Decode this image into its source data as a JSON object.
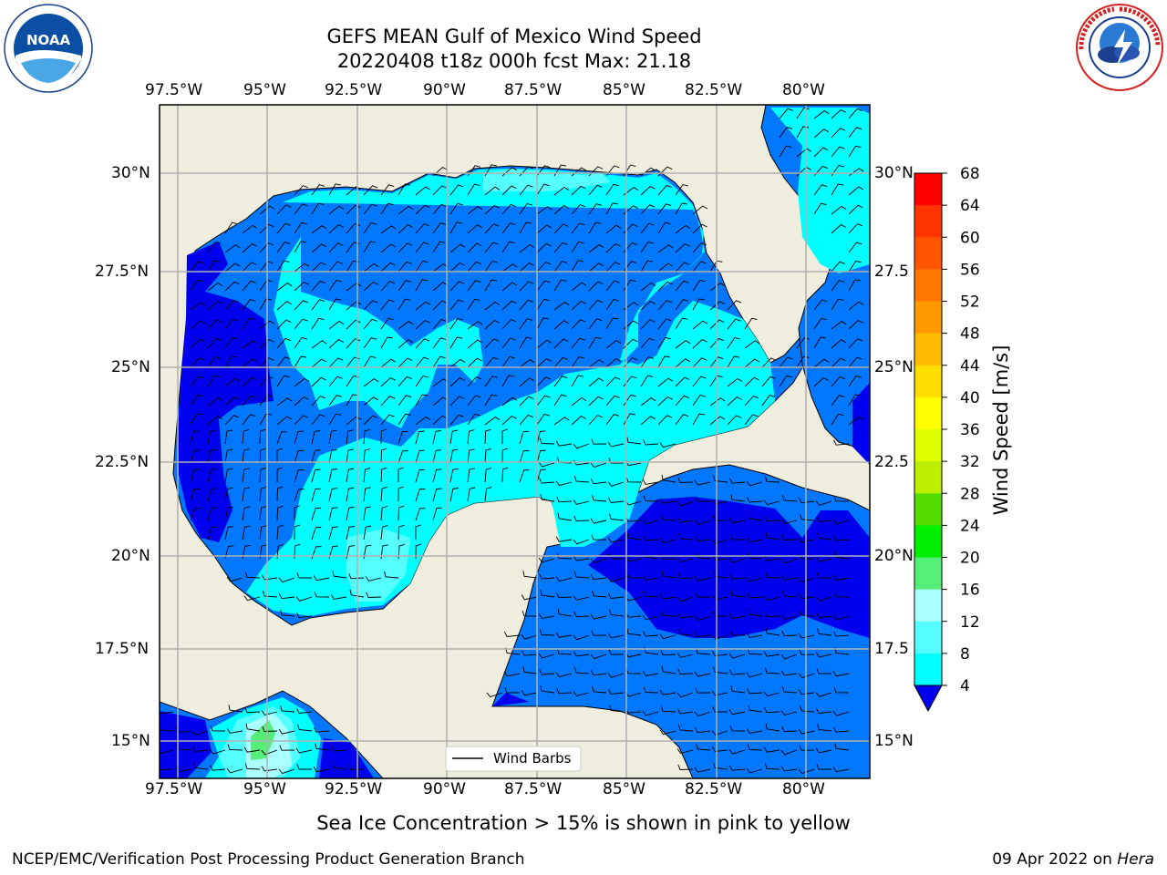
{
  "header": {
    "title_line1": "GEFS MEAN Gulf of Mexico Wind Speed",
    "title_line2": "20220408 t18z 000h fcst   Max: 21.18"
  },
  "logos": {
    "left": {
      "name": "NOAA",
      "text": "NOAA",
      "ring_text": "NATIONAL OCEANIC AND ATMOSPHERIC ADMINISTRATION · U.S. DEPARTMENT OF COMMERCE"
    },
    "right": {
      "name": "National Weather Service",
      "ring_text": "NATIONAL WEATHER SERVICE"
    }
  },
  "map": {
    "lon_labels": [
      "97.5°W",
      "95°W",
      "92.5°W",
      "90°W",
      "87.5°W",
      "85°W",
      "82.5°W",
      "80°W"
    ],
    "lat_labels_left": [
      "30°N",
      "27.5°N",
      "25°N",
      "22.5°N",
      "20°N",
      "17.5°N",
      "15°N"
    ],
    "lat_labels_right": [
      "30°N",
      "27.5",
      "25°N",
      "22.5",
      "20°N",
      "17.5",
      "15°N"
    ],
    "legend_label": "Wind Barbs",
    "colors": {
      "land": "#efedde",
      "grid": "#b0b0b0"
    }
  },
  "colorbar": {
    "label": "Wind Speed [m/s]",
    "ticks": [
      "68",
      "64",
      "60",
      "56",
      "52",
      "48",
      "44",
      "40",
      "36",
      "32",
      "28",
      "24",
      "20",
      "16",
      "12",
      "8",
      "4"
    ],
    "colors": [
      "#ff0000",
      "#ff3300",
      "#ff5500",
      "#ff7700",
      "#ff9900",
      "#ffbb00",
      "#ffdd00",
      "#ffff00",
      "#ddff00",
      "#bbee00",
      "#55dd00",
      "#00ee00",
      "#55ee77",
      "#aaffff",
      "#55ffff",
      "#00ffff",
      "#0077ff"
    ],
    "under_color": "#0000ee"
  },
  "footer": {
    "ice_note": "Sea Ice Concentration > 15% is shown in pink to yellow",
    "credit": "NCEP/EMC/Verification Post Processing Product Generation Branch",
    "date": "09 Apr 2022 on",
    "host": "Hera"
  }
}
